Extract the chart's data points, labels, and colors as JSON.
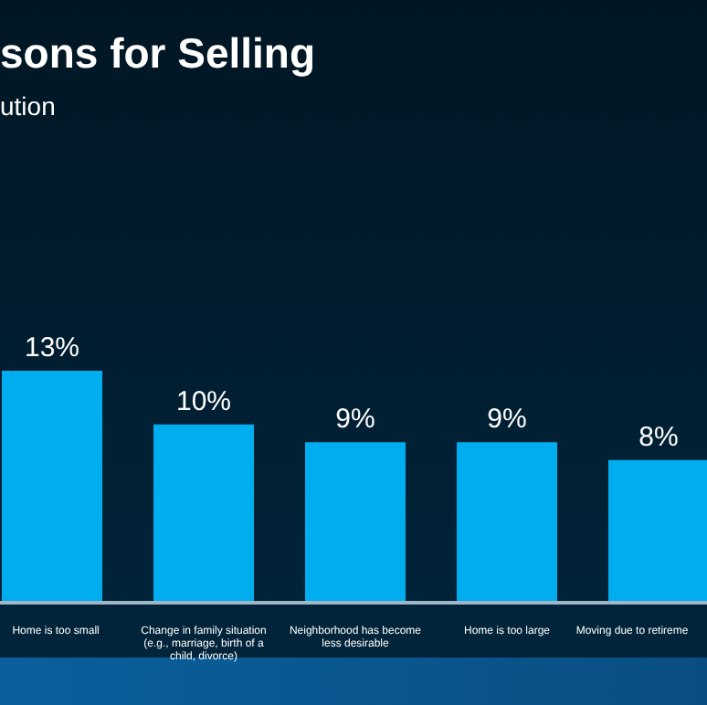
{
  "chart_data": {
    "type": "bar",
    "title": "sons for Selling",
    "subtitle": "ution",
    "categories": [
      "Home is too small",
      "Change in family situation (e.g., marriage, birth of a child, divorce)",
      "Neighborhood has become less desirable",
      "Home is too large",
      "Moving due to retireme"
    ],
    "values": [
      13,
      10,
      9,
      9,
      8
    ],
    "value_labels": [
      "13%",
      "10%",
      "9%",
      "9%",
      "8%"
    ],
    "color": "#00aeef"
  }
}
